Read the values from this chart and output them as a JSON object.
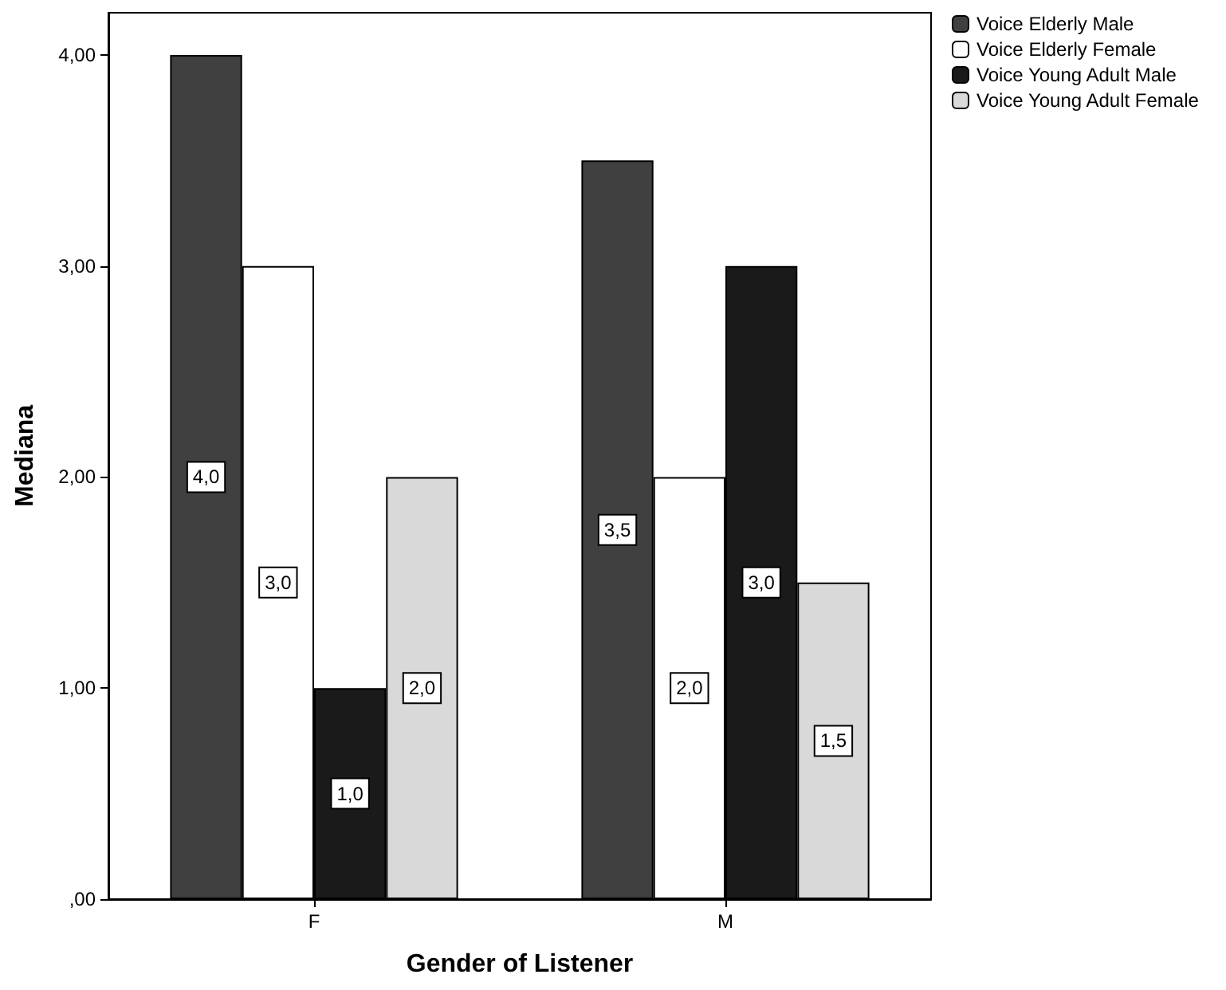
{
  "chart_data": {
    "type": "bar",
    "xlabel": "Gender of Listener",
    "ylabel": "Mediana",
    "categories": [
      "F",
      "M"
    ],
    "series": [
      {
        "name": "Voice Elderly Male",
        "color": "#404040",
        "values": [
          4.0,
          3.5
        ],
        "value_labels": [
          "4,0",
          "3,5"
        ]
      },
      {
        "name": "Voice Elderly Female",
        "color": "#ffffff",
        "values": [
          3.0,
          2.0
        ],
        "value_labels": [
          "3,0",
          "2,0"
        ]
      },
      {
        "name": "Voice Young Adult Male",
        "color": "#1a1a1a",
        "values": [
          1.0,
          3.0
        ],
        "value_labels": [
          "1,0",
          "3,0"
        ]
      },
      {
        "name": "Voice Young Adult Female",
        "color": "#d9d9d9",
        "values": [
          2.0,
          1.5
        ],
        "value_labels": [
          "2,0",
          "1,5"
        ]
      }
    ],
    "ylim": [
      0,
      4.2
    ],
    "yticks": [
      {
        "value": 0,
        "label": ",00"
      },
      {
        "value": 1,
        "label": "1,00"
      },
      {
        "value": 2,
        "label": "2,00"
      },
      {
        "value": 3,
        "label": "3,00"
      },
      {
        "value": 4,
        "label": "4,00"
      }
    ],
    "grid": false,
    "legend": "top right"
  }
}
